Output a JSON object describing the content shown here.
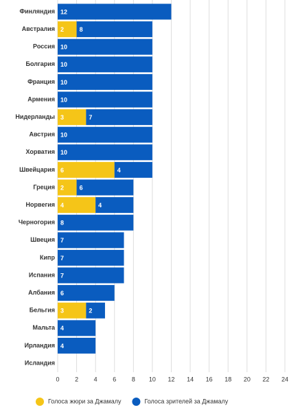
{
  "chart_data": {
    "type": "bar",
    "orientation": "horizontal",
    "stacked": true,
    "categories": [
      "Финляндия",
      "Австралия",
      "Россия",
      "Болгария",
      "Франция",
      "Армения",
      "Нидерланды",
      "Австрия",
      "Хорватия",
      "Швейцария",
      "Греция",
      "Норвегия",
      "Черногория",
      "Швеция",
      "Кипр",
      "Испания",
      "Албания",
      "Бельгия",
      "Мальта",
      "Ирландия",
      "Исландия"
    ],
    "series": [
      {
        "name": "Голоса жюри за Джамалу",
        "color": "#f5c518",
        "values": [
          null,
          2,
          null,
          null,
          null,
          null,
          3,
          null,
          null,
          6,
          2,
          4,
          null,
          null,
          null,
          null,
          null,
          3,
          null,
          null,
          null
        ]
      },
      {
        "name": "Голоса зрителей за Джамалу",
        "color": "#0a5cbf",
        "values": [
          12,
          8,
          10,
          10,
          10,
          10,
          7,
          10,
          10,
          4,
          6,
          4,
          8,
          7,
          7,
          7,
          6,
          2,
          4,
          4,
          null
        ]
      }
    ],
    "xlim": [
      0,
      24
    ],
    "xticks": [
      0,
      2,
      4,
      6,
      8,
      10,
      12,
      14,
      16,
      18,
      20,
      22,
      24
    ],
    "grid": true
  }
}
